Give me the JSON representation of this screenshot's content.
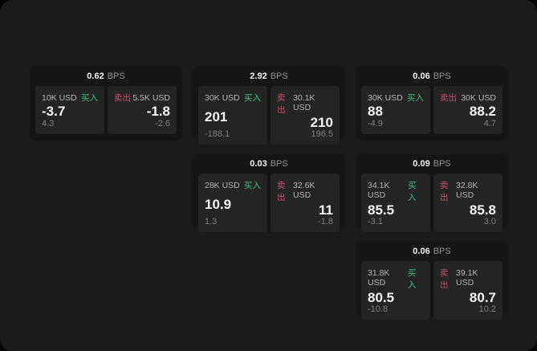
{
  "app": {
    "background": "#1b1b1b",
    "outer_background": "#070707"
  },
  "labels": {
    "buy": "买入",
    "sell": "卖出",
    "bps": "BPS"
  },
  "colors": {
    "buy_accent": "#3fbf77",
    "sell_accent": "#c84f68",
    "card_background": "#151515",
    "panel_background": "#242424",
    "value_text": "#f7f7f7",
    "muted_text": "#8f8f8f"
  },
  "cards": [
    {
      "bps": "0.62",
      "buy": {
        "amount": "10K USD",
        "value": "-3.7",
        "sub": "4.3"
      },
      "sell": {
        "amount": "5.5K USD",
        "value": "-1.8",
        "sub": "-2.6"
      }
    },
    {
      "bps": "2.92",
      "buy": {
        "amount": "30K USD",
        "value": "201",
        "sub": "-188.1"
      },
      "sell": {
        "amount": "30.1K USD",
        "value": "210",
        "sub": "196.5"
      }
    },
    {
      "bps": "0.06",
      "buy": {
        "amount": "30K USD",
        "value": "88",
        "sub": "-4.9"
      },
      "sell": {
        "amount": "30K USD",
        "value": "88.2",
        "sub": "4.7"
      }
    },
    {
      "bps": "0.03",
      "buy": {
        "amount": "28K USD",
        "value": "10.9",
        "sub": "1.3"
      },
      "sell": {
        "amount": "32.6K USD",
        "value": "11",
        "sub": "-1.8"
      }
    },
    {
      "bps": "0.09",
      "buy": {
        "amount": "34.1K USD",
        "value": "85.5",
        "sub": "-3.1"
      },
      "sell": {
        "amount": "32.8K USD",
        "value": "85.8",
        "sub": "3.0"
      }
    },
    {
      "bps": "0.06",
      "buy": {
        "amount": "31.8K USD",
        "value": "80.5",
        "sub": "-10.8"
      },
      "sell": {
        "amount": "39.1K USD",
        "value": "80.7",
        "sub": "10.2"
      }
    }
  ]
}
